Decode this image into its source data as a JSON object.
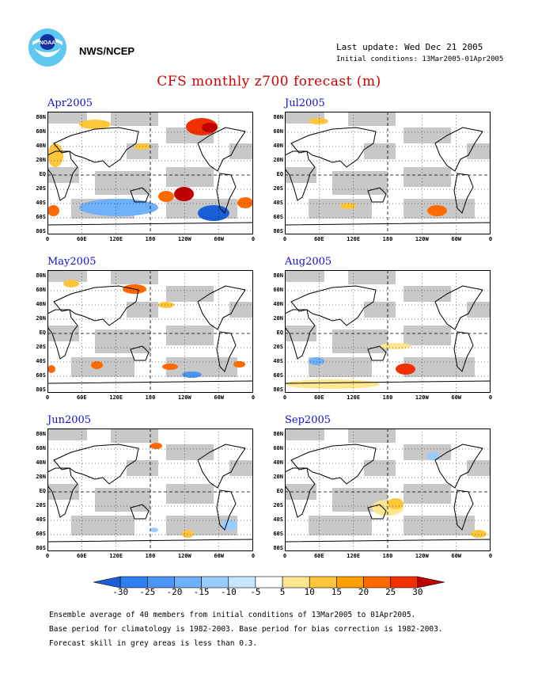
{
  "header": {
    "agency": "NWS/NCEP",
    "last_update": "Last update: Wed Dec 21 2005",
    "initial_conditions": "Initial conditions: 13Mar2005-01Apr2005",
    "title": "CFS monthly z700 forecast (m)"
  },
  "panels": [
    {
      "title": "Apr2005"
    },
    {
      "title": "Jul2005"
    },
    {
      "title": "May2005"
    },
    {
      "title": "Aug2005"
    },
    {
      "title": "Jun2005"
    },
    {
      "title": "Sep2005"
    }
  ],
  "lat_labels": [
    "80N",
    "60N",
    "40N",
    "20N",
    "EQ",
    "20S",
    "40S",
    "60S",
    "80S"
  ],
  "lon_labels": [
    "0",
    "60E",
    "120E",
    "180",
    "120W",
    "60W",
    "0"
  ],
  "legend": {
    "ticks": [
      "-30",
      "-25",
      "-20",
      "-15",
      "-10",
      "-5",
      "5",
      "10",
      "15",
      "20",
      "25",
      "30"
    ],
    "colors": [
      "#1a5fd8",
      "#2f7ff0",
      "#4b95f5",
      "#6fb0fa",
      "#99ccff",
      "#c4e6ff",
      "#ffffff",
      "#ffe690",
      "#ffc63c",
      "#ffa000",
      "#ff6a00",
      "#f03000",
      "#c00000"
    ]
  },
  "footnotes": [
    "Ensemble average of 40 members from initial conditions of 13Mar2005 to 01Apr2005.",
    "Base period for climatology is 1982-2003. Base period for bias correction is 1982-2003.",
    "Forecast skill in grey areas is less than 0.3."
  ]
}
